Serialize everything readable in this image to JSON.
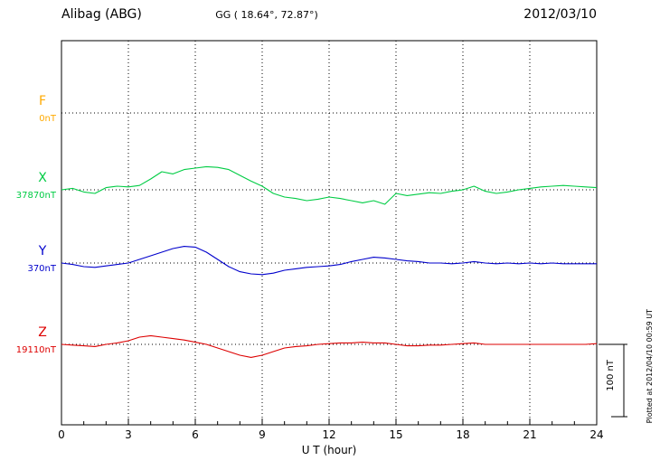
{
  "header": {
    "station": "Alibag (ABG)",
    "coords": "GG ( 18.64°,  72.87°)",
    "date": "2012/03/10"
  },
  "axis": {
    "x_ticks": [
      "0",
      "3",
      "6",
      "9",
      "12",
      "15",
      "18",
      "21",
      "24"
    ],
    "x_label": "U T (hour)"
  },
  "scale_bar": {
    "label": "100 nT",
    "nT": 100
  },
  "footer_note": "Plotted at 2012/04/10 00:59 UT",
  "colors": {
    "frame": "#000000",
    "F": "#ffaa00",
    "X": "#00cc44",
    "Y": "#0000cc",
    "Z": "#dd0000"
  },
  "chart_data": {
    "type": "line",
    "title": "Alibag (ABG) magnetogram",
    "xlabel": "U T (hour)",
    "x_range": [
      0,
      24
    ],
    "sample_step_hours": 0.5,
    "grid": "dotted vertical every 3 hours, dotted horizontal at each component baseline",
    "series_values_are": "offset_nT_from_base_value",
    "series": [
      {
        "name": "F",
        "baseline_label": "0nT",
        "base_value_nT": 0,
        "color": "#ffaa00",
        "values": []
      },
      {
        "name": "X",
        "baseline_label": "37870nT",
        "base_value_nT": 37870,
        "color": "#00cc44",
        "values": [
          0,
          2,
          -3,
          -5,
          3,
          5,
          4,
          6,
          15,
          25,
          22,
          28,
          30,
          32,
          31,
          28,
          20,
          12,
          5,
          -5,
          -10,
          -12,
          -15,
          -13,
          -10,
          -12,
          -15,
          -18,
          -15,
          -20,
          -5,
          -8,
          -6,
          -4,
          -5,
          -2,
          0,
          5,
          -2,
          -5,
          -3,
          0,
          2,
          4,
          5,
          6,
          5,
          4,
          3
        ]
      },
      {
        "name": "Y",
        "baseline_label": "370nT",
        "base_value_nT": 370,
        "color": "#0000cc",
        "values": [
          0,
          -2,
          -5,
          -6,
          -4,
          -2,
          0,
          5,
          10,
          15,
          20,
          23,
          22,
          15,
          5,
          -5,
          -12,
          -15,
          -16,
          -14,
          -10,
          -8,
          -6,
          -5,
          -4,
          -2,
          2,
          5,
          8,
          7,
          5,
          3,
          2,
          0,
          0,
          -1,
          0,
          2,
          0,
          -1,
          0,
          -1,
          0,
          -1,
          0,
          -1,
          -1,
          -1,
          -1
        ]
      },
      {
        "name": "Z",
        "baseline_label": "19110nT",
        "base_value_nT": 19110,
        "color": "#dd0000",
        "values": [
          0,
          -1,
          -2,
          -3,
          0,
          2,
          5,
          10,
          12,
          10,
          8,
          6,
          3,
          0,
          -5,
          -10,
          -15,
          -18,
          -15,
          -10,
          -5,
          -3,
          -2,
          0,
          1,
          2,
          2,
          3,
          2,
          2,
          0,
          -2,
          -2,
          -1,
          -1,
          0,
          1,
          2,
          0,
          0,
          0,
          0,
          0,
          0,
          0,
          0,
          0,
          0,
          1
        ]
      }
    ]
  }
}
